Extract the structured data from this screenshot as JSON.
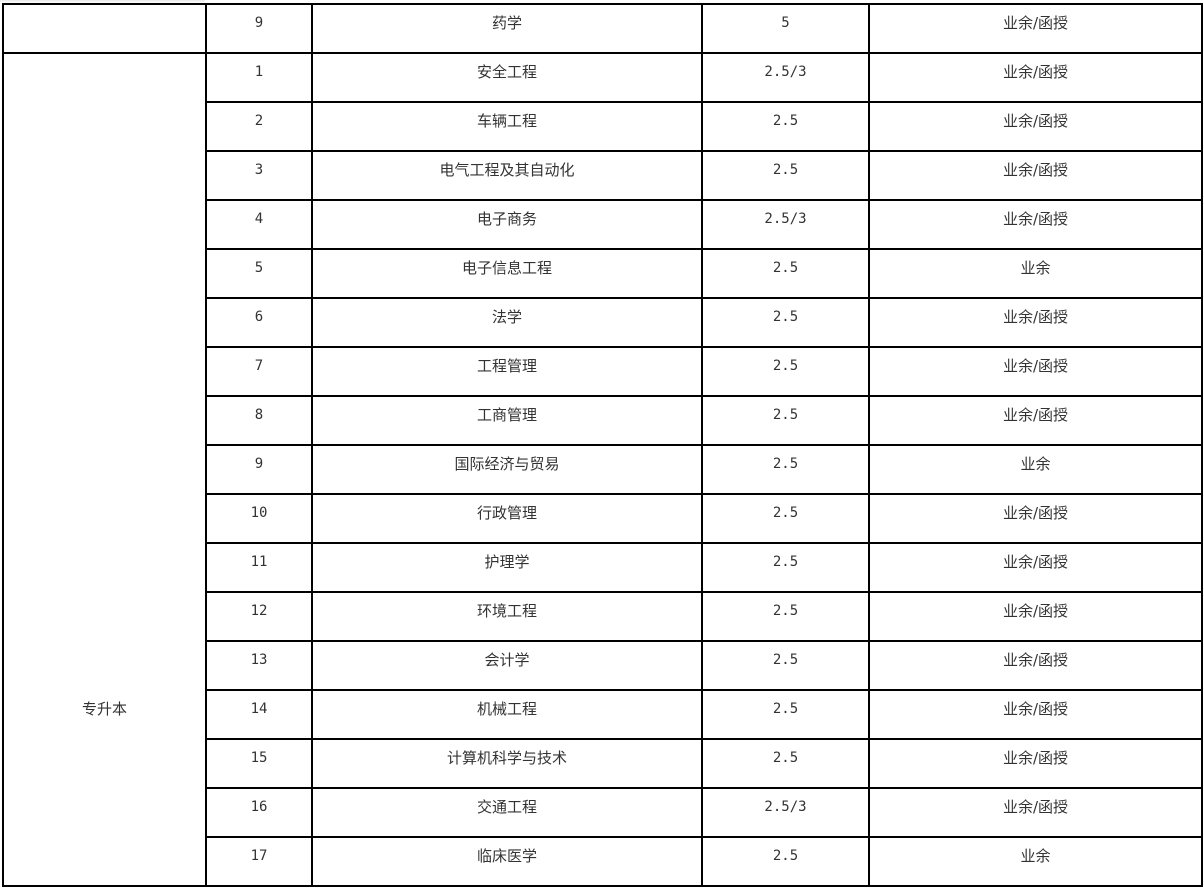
{
  "prev_group": {
    "category": "",
    "rows": [
      {
        "no": "9",
        "major": "药学",
        "years": "5",
        "mode": "业余/函授"
      }
    ]
  },
  "group": {
    "category": "专升本",
    "rows": [
      {
        "no": "1",
        "major": "安全工程",
        "years": "2.5/3",
        "mode": "业余/函授"
      },
      {
        "no": "2",
        "major": "车辆工程",
        "years": "2.5",
        "mode": "业余/函授"
      },
      {
        "no": "3",
        "major": "电气工程及其自动化",
        "years": "2.5",
        "mode": "业余/函授"
      },
      {
        "no": "4",
        "major": "电子商务",
        "years": "2.5/3",
        "mode": "业余/函授"
      },
      {
        "no": "5",
        "major": "电子信息工程",
        "years": "2.5",
        "mode": "业余"
      },
      {
        "no": "6",
        "major": "法学",
        "years": "2.5",
        "mode": "业余/函授"
      },
      {
        "no": "7",
        "major": "工程管理",
        "years": "2.5",
        "mode": "业余/函授"
      },
      {
        "no": "8",
        "major": "工商管理",
        "years": "2.5",
        "mode": "业余/函授"
      },
      {
        "no": "9",
        "major": "国际经济与贸易",
        "years": "2.5",
        "mode": "业余"
      },
      {
        "no": "10",
        "major": "行政管理",
        "years": "2.5",
        "mode": "业余/函授"
      },
      {
        "no": "11",
        "major": "护理学",
        "years": "2.5",
        "mode": "业余/函授"
      },
      {
        "no": "12",
        "major": "环境工程",
        "years": "2.5",
        "mode": "业余/函授"
      },
      {
        "no": "13",
        "major": "会计学",
        "years": "2.5",
        "mode": "业余/函授"
      },
      {
        "no": "14",
        "major": "机械工程",
        "years": "2.5",
        "mode": "业余/函授"
      },
      {
        "no": "15",
        "major": "计算机科学与技术",
        "years": "2.5",
        "mode": "业余/函授"
      },
      {
        "no": "16",
        "major": "交通工程",
        "years": "2.5/3",
        "mode": "业余/函授"
      },
      {
        "no": "17",
        "major": "临床医学",
        "years": "2.5",
        "mode": "业余"
      }
    ]
  }
}
